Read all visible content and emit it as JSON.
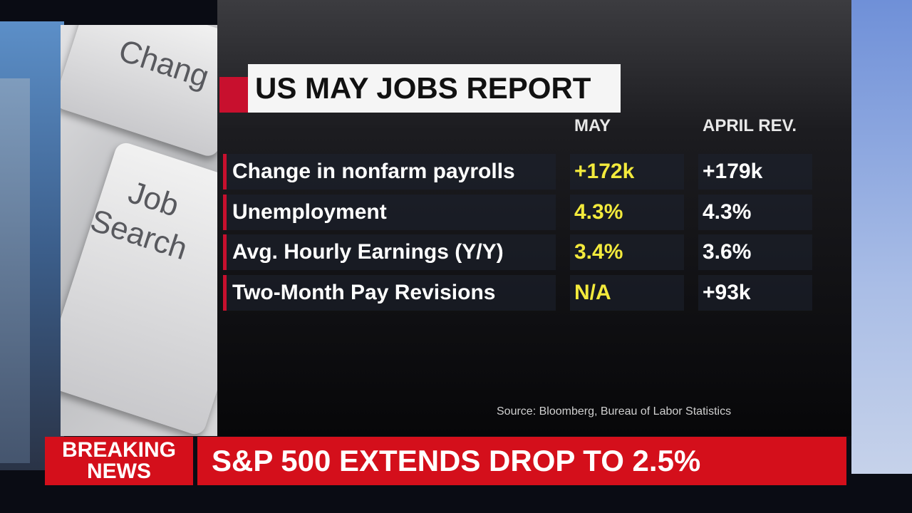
{
  "keyboard": {
    "keys": [
      "Chang",
      "Job",
      "Search"
    ]
  },
  "header": {
    "title": "US MAY JOBS REPORT"
  },
  "table": {
    "columns": [
      "MAY",
      "APRIL REV."
    ],
    "rows": [
      [
        "Change in nonfarm payrolls",
        "+172k",
        "+179k"
      ],
      [
        "Unemployment",
        "4.3%",
        "4.3%"
      ],
      [
        "Avg. Hourly Earnings (Y/Y)",
        "3.4%",
        "3.6%"
      ],
      [
        "Two-Month Pay Revisions",
        "N/A",
        "+93k"
      ]
    ]
  },
  "source": "Source: Bloomberg, Bureau of Labor Statistics",
  "ticker": {
    "label": [
      "BREAKING",
      "NEWS"
    ],
    "headline": "S&P 500 EXTENDS DROP TO 2.5%"
  }
}
